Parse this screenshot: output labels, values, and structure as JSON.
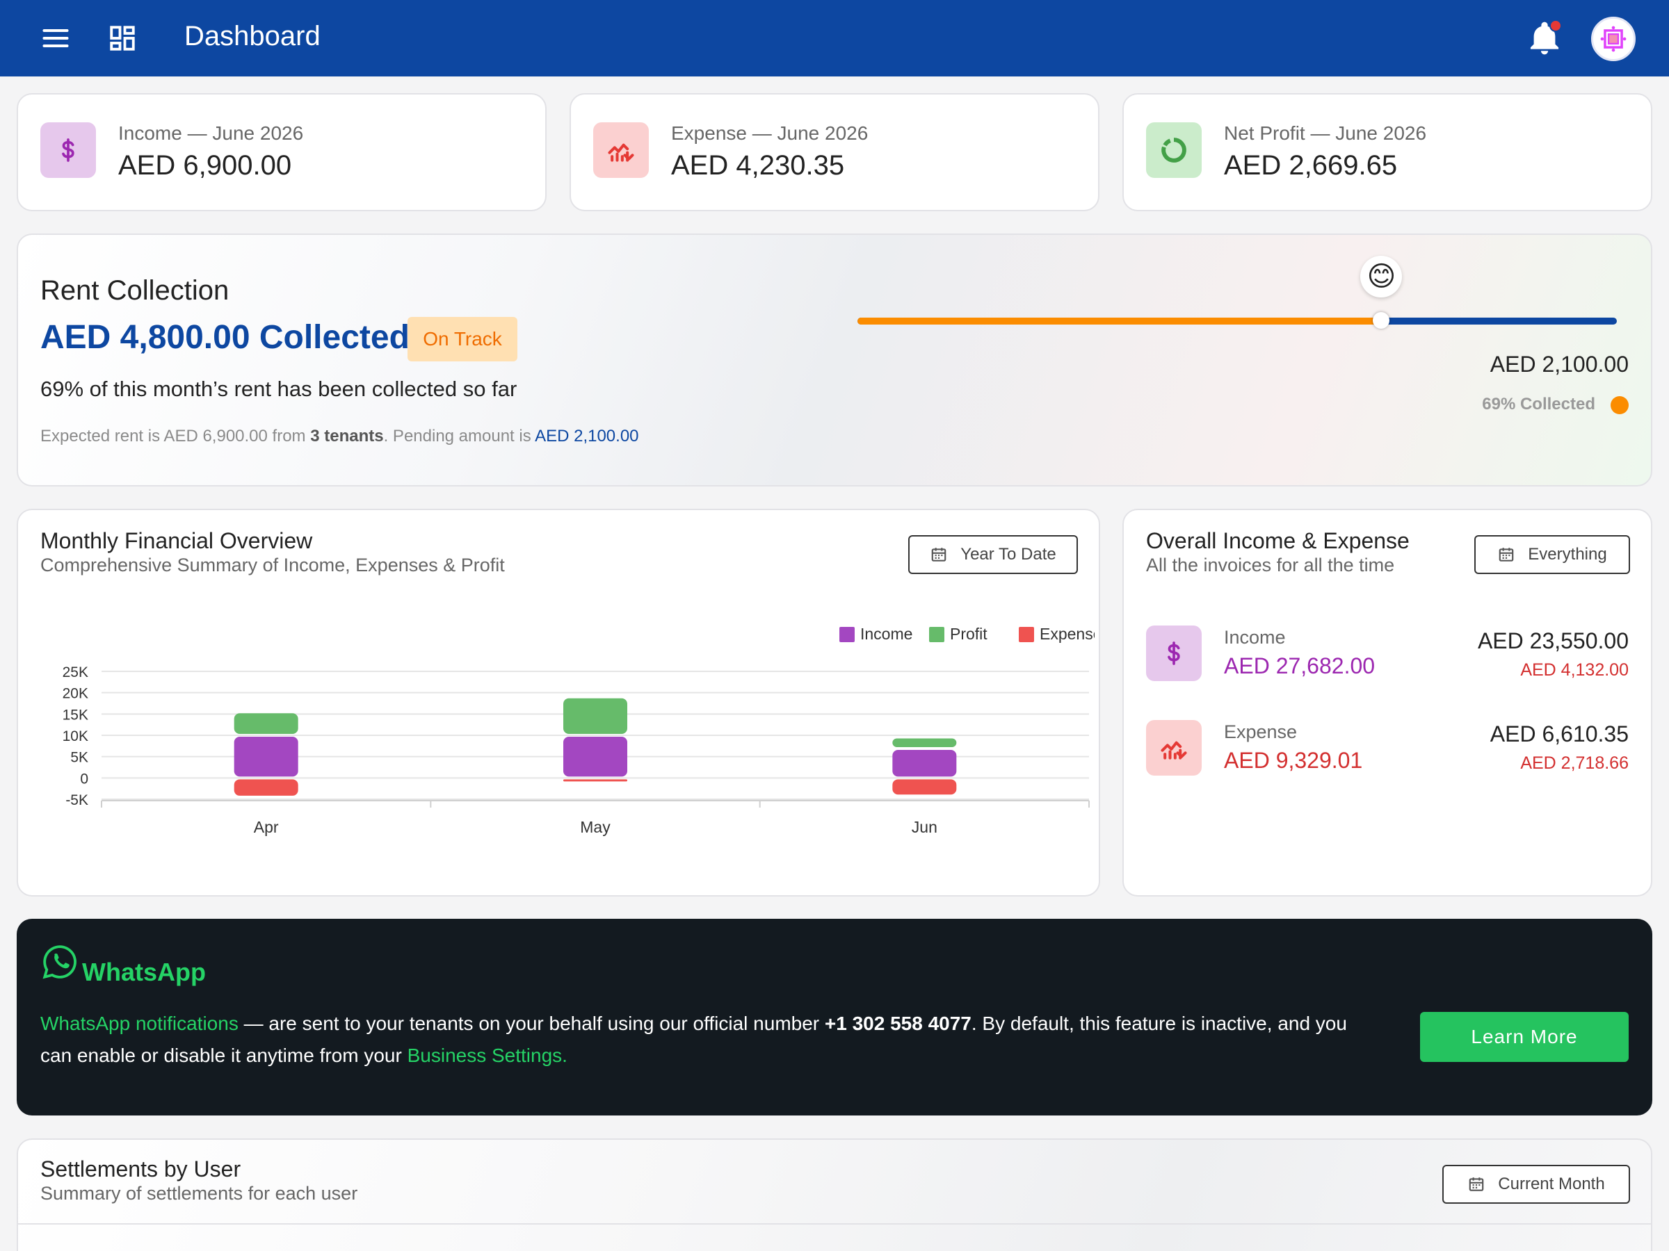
{
  "header": {
    "title": "Dashboard",
    "menu_icon": "menu-icon",
    "dashboard_icon": "dashboard-grid-icon",
    "bell_icon": "bell-icon",
    "avatar_icon": "avatar"
  },
  "stats": [
    {
      "label": "Income — June 2026",
      "value": "AED 6,900.00",
      "icon": "dollar-icon",
      "color": "#9c27b0",
      "bg": "#e6c8ec"
    },
    {
      "label": "Expense — June 2026",
      "value": "AED 4,230.35",
      "icon": "trend-down-icon",
      "color": "#e53935",
      "bg": "#fbd0d0"
    },
    {
      "label": "Net Profit — June 2026",
      "value": "AED 2,669.65",
      "icon": "donut-icon",
      "color": "#43a047",
      "bg": "#cbeccb"
    }
  ],
  "rent": {
    "title": "Rent Collection",
    "collected": "AED 4,800.00 Collected",
    "badge": "On Track",
    "subtitle": "69% of this month’s rent has been collected so far",
    "note_prefix": "Expected rent is AED 6,900.00 from ",
    "note_tenants": "3 tenants",
    "note_mid": ". Pending amount is ",
    "note_pending": "AED 2,100.00",
    "pending_value": "AED 2,100.00",
    "collected_pct_label": "69% Collected",
    "progress_fraction": 0.69,
    "emoji": "😊"
  },
  "monthly": {
    "title": "Monthly Financial Overview",
    "subtitle": "Comprehensive Summary of Income, Expenses & Profit",
    "filter": "Year To Date"
  },
  "overall": {
    "title": "Overall Income & Expense",
    "subtitle": "All the invoices for all the time",
    "filter": "Everything",
    "income": {
      "label": "Income",
      "value": "AED 27,682.00",
      "right": "AED 23,550.00",
      "right_sub": "AED 4,132.00",
      "color": "#9c27b0"
    },
    "expense": {
      "label": "Expense",
      "value": "AED 9,329.01",
      "right": "AED 6,610.35",
      "right_sub": "AED 2,718.66",
      "color": "#d32f2f"
    }
  },
  "whatsapp": {
    "brand": "WhatsApp",
    "link1": "WhatsApp notifications",
    "text1": " — are sent to your tenants on your behalf using our official number ",
    "number": "+1 302 558 4077",
    "text2": ". By default, this feature is inactive, and you can enable or disable it anytime from your ",
    "link2": "Business Settings.",
    "button": "Learn More"
  },
  "settlements": {
    "title": "Settlements by User",
    "subtitle": "Summary of settlements for each user",
    "filter": "Current Month"
  },
  "chart_data": {
    "type": "bar",
    "stacked": true,
    "categories": [
      "Apr",
      "May",
      "Jun"
    ],
    "series": [
      {
        "name": "Income",
        "values": [
          10000,
          10000,
          6900
        ],
        "color": "#a347c1"
      },
      {
        "name": "Profit",
        "values": [
          5500,
          9000,
          2700
        ],
        "color": "#66bb6a"
      },
      {
        "name": "Expenses",
        "values": [
          -4500,
          -1000,
          -4230
        ],
        "color": "#ef5350"
      }
    ],
    "ylim": [
      -5000,
      25000
    ],
    "yticks": [
      "25K",
      "20K",
      "15K",
      "10K",
      "5K",
      "0",
      "-5K"
    ],
    "legend_position": "top-right",
    "grid": true
  }
}
